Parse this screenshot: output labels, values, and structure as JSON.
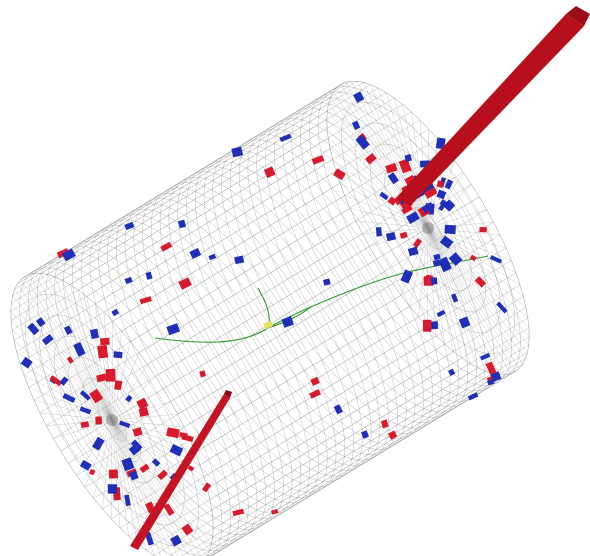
{
  "scene": {
    "subject": "detector-event-display",
    "colors": {
      "background": "#ffffff",
      "mesh": "#9a9a9a",
      "cell_red": "#d81b2c",
      "cell_blue": "#1f2fb8",
      "jet_red": "#c01020",
      "jet_red_dark": "#7a0a12",
      "track_green": "#2e9a2e",
      "vertex_yellow": "#e8e05a"
    },
    "icons": [
      "detector-cylinder",
      "calorimeter-cell",
      "jet-tower",
      "particle-track"
    ]
  }
}
